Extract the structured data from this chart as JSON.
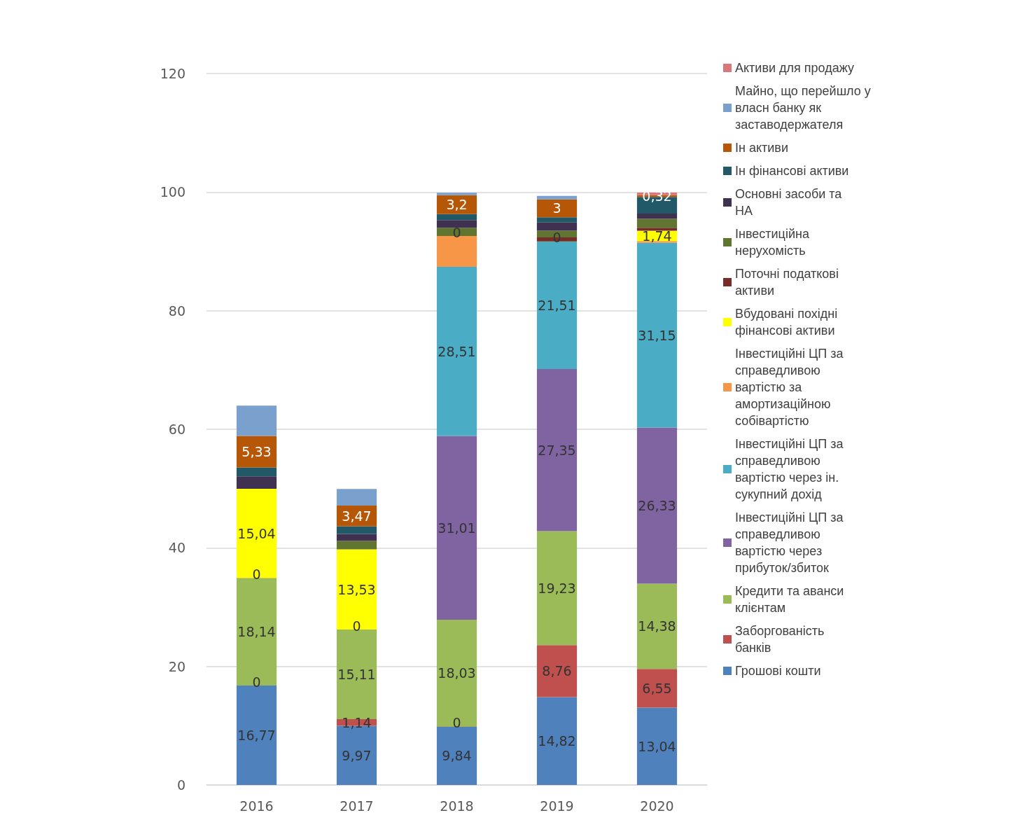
{
  "chart_data": {
    "type": "bar",
    "stacked": true,
    "categories": [
      "2016",
      "2017",
      "2018",
      "2019",
      "2020"
    ],
    "ylim": [
      0,
      120
    ],
    "yticks": [
      0,
      20,
      40,
      60,
      80,
      100,
      120
    ],
    "grid": "y",
    "legend": "right",
    "series": [
      {
        "name": "Грошові кошти",
        "color": "#4f81bd",
        "values": [
          16.77,
          9.97,
          9.84,
          14.82,
          13.04
        ],
        "value_labels": [
          "16,77",
          "9,97",
          "9,84",
          "14,82",
          "13,04"
        ]
      },
      {
        "name": "Заборгованість банків",
        "color": "#c0504d",
        "values": [
          0,
          1.14,
          0,
          8.76,
          6.55
        ],
        "value_labels": [
          "0",
          "1,14",
          "0",
          "8,76",
          "6,55"
        ]
      },
      {
        "name": "Кредити та аванси клієнтам",
        "color": "#9bbb59",
        "values": [
          18.14,
          15.11,
          18.03,
          19.23,
          14.38
        ],
        "value_labels": [
          "18,14",
          "15,11",
          "18,03",
          "19,23",
          "14,38"
        ]
      },
      {
        "name": "Інвестиційні ЦП за справедливою вартістю через прибуток/збиток",
        "color": "#8064a2",
        "values": [
          0,
          0,
          31.01,
          27.35,
          26.33
        ],
        "value_labels": [
          "0",
          "0",
          "31,01",
          "27,35",
          "26,33"
        ]
      },
      {
        "name": "Інвестиційні ЦП за справедливою вартістю через ін. сукупний дохід",
        "color": "#4bacc6",
        "values": [
          null,
          null,
          28.51,
          21.51,
          31.15
        ],
        "value_labels": [
          null,
          null,
          "28,51",
          "21,51",
          "31,15"
        ]
      },
      {
        "name": "Інвестиційні ЦП за справедливою вартістю за амортизаційною собівартістю",
        "color": "#f79646",
        "values": [
          null,
          null,
          5.2,
          null,
          0.3
        ],
        "value_labels": [
          null,
          null,
          null,
          null,
          null
        ]
      },
      {
        "name": "Вбудовані похідні фінансові активи",
        "color": "#ffff00",
        "values": [
          15.04,
          13.53,
          0,
          0,
          1.74
        ],
        "value_labels": [
          "15,04",
          "13,53",
          "0",
          "0",
          "1,74"
        ]
      },
      {
        "name": "Поточні податкові активи",
        "color": "#772c2a",
        "values": [
          null,
          null,
          null,
          0.7,
          0.5
        ],
        "value_labels": [
          null,
          null,
          null,
          null,
          null
        ]
      },
      {
        "name": "Інвестиційна нерухомість",
        "color": "#5f7530",
        "values": [
          null,
          1.4,
          1.4,
          1.1,
          1.5
        ],
        "value_labels": [
          null,
          null,
          null,
          null,
          null
        ]
      },
      {
        "name": "Основні засоби та НА",
        "color": "#403151",
        "values": [
          2.1,
          1.2,
          1.3,
          1.4,
          0.9
        ],
        "value_labels": [
          null,
          null,
          null,
          null,
          null
        ]
      },
      {
        "name": "Ін фінансові активи",
        "color": "#215968",
        "values": [
          1.5,
          1.3,
          1.0,
          0.9,
          2.8
        ],
        "value_labels": [
          null,
          null,
          null,
          null,
          null
        ]
      },
      {
        "name": "Ін активи",
        "color": "#b65708",
        "values": [
          5.33,
          3.47,
          3.2,
          3,
          0.32
        ],
        "value_labels": [
          "5,33",
          "3,47",
          "3,2",
          "3",
          "0,32"
        ]
      },
      {
        "name": "Майно, що перейшло у власн банку як заставодержателя",
        "color": "#7aa0cd",
        "values": [
          5.1,
          2.8,
          0.4,
          0.6,
          null
        ],
        "value_labels": [
          null,
          null,
          null,
          null,
          null
        ]
      },
      {
        "name": "Активи для продажу",
        "color": "#d9787a",
        "values": [
          null,
          null,
          null,
          null,
          0.4
        ],
        "value_labels": [
          null,
          null,
          null,
          null,
          null
        ]
      }
    ]
  }
}
